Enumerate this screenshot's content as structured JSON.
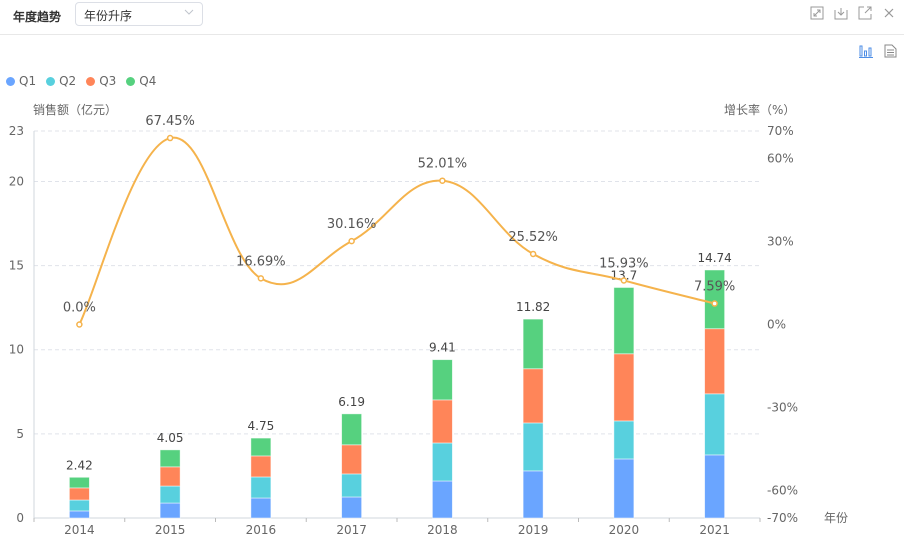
{
  "header": {
    "title": "年度趋势",
    "sort_select": {
      "value": "年份升序"
    },
    "icons": [
      "fullscreen-icon",
      "download-icon",
      "external-link-icon",
      "close-icon"
    ]
  },
  "view_toggle": {
    "icons": [
      "bar-chart-icon",
      "table-view-icon"
    ]
  },
  "colors": {
    "Q1": "#6aa5ff",
    "Q2": "#58d0de",
    "Q3": "#ff8559",
    "Q4": "#56d17f",
    "line": "#f5b34c",
    "accent": "#4e8ee6"
  },
  "chart_data": {
    "type": "bar",
    "stacked": true,
    "categories": [
      "2014",
      "2015",
      "2016",
      "2017",
      "2018",
      "2019",
      "2020",
      "2021"
    ],
    "series": [
      {
        "name": "Q1",
        "values": [
          0.42,
          0.89,
          1.19,
          1.25,
          2.2,
          2.8,
          3.51,
          3.75
        ]
      },
      {
        "name": "Q2",
        "values": [
          0.65,
          1.01,
          1.25,
          1.37,
          2.26,
          2.85,
          2.26,
          3.63
        ]
      },
      {
        "name": "Q3",
        "values": [
          0.72,
          1.14,
          1.25,
          1.73,
          2.56,
          3.22,
          3.99,
          3.87
        ]
      },
      {
        "name": "Q4",
        "values": [
          0.63,
          1.01,
          1.06,
          1.84,
          2.39,
          2.95,
          3.94,
          3.49
        ]
      }
    ],
    "totals": [
      "2.42",
      "4.05",
      "4.75",
      "6.19",
      "9.41",
      "11.82",
      "13.7",
      "14.74"
    ],
    "line_series": {
      "name": "增长率",
      "values": [
        0.0,
        67.45,
        16.69,
        30.16,
        52.01,
        25.52,
        15.93,
        7.59
      ],
      "labels": [
        "0.0%",
        "67.45%",
        "16.69%",
        "30.16%",
        "52.01%",
        "25.52%",
        "15.93%",
        "7.59%"
      ]
    },
    "ylabel": "销售额（亿元）",
    "y2label": "增长率（%）",
    "xlabel": "年份",
    "ylim": [
      0,
      23
    ],
    "yticks": [
      "0",
      "5",
      "10",
      "15",
      "20",
      "23"
    ],
    "y2lim": [
      -70,
      70
    ],
    "y2ticks": [
      "-70%",
      "-60%",
      "-30%",
      "0%",
      "30%",
      "60%",
      "70%"
    ],
    "legend": [
      "Q1",
      "Q2",
      "Q3",
      "Q4"
    ],
    "legend_position": "top-left",
    "grid": true
  }
}
